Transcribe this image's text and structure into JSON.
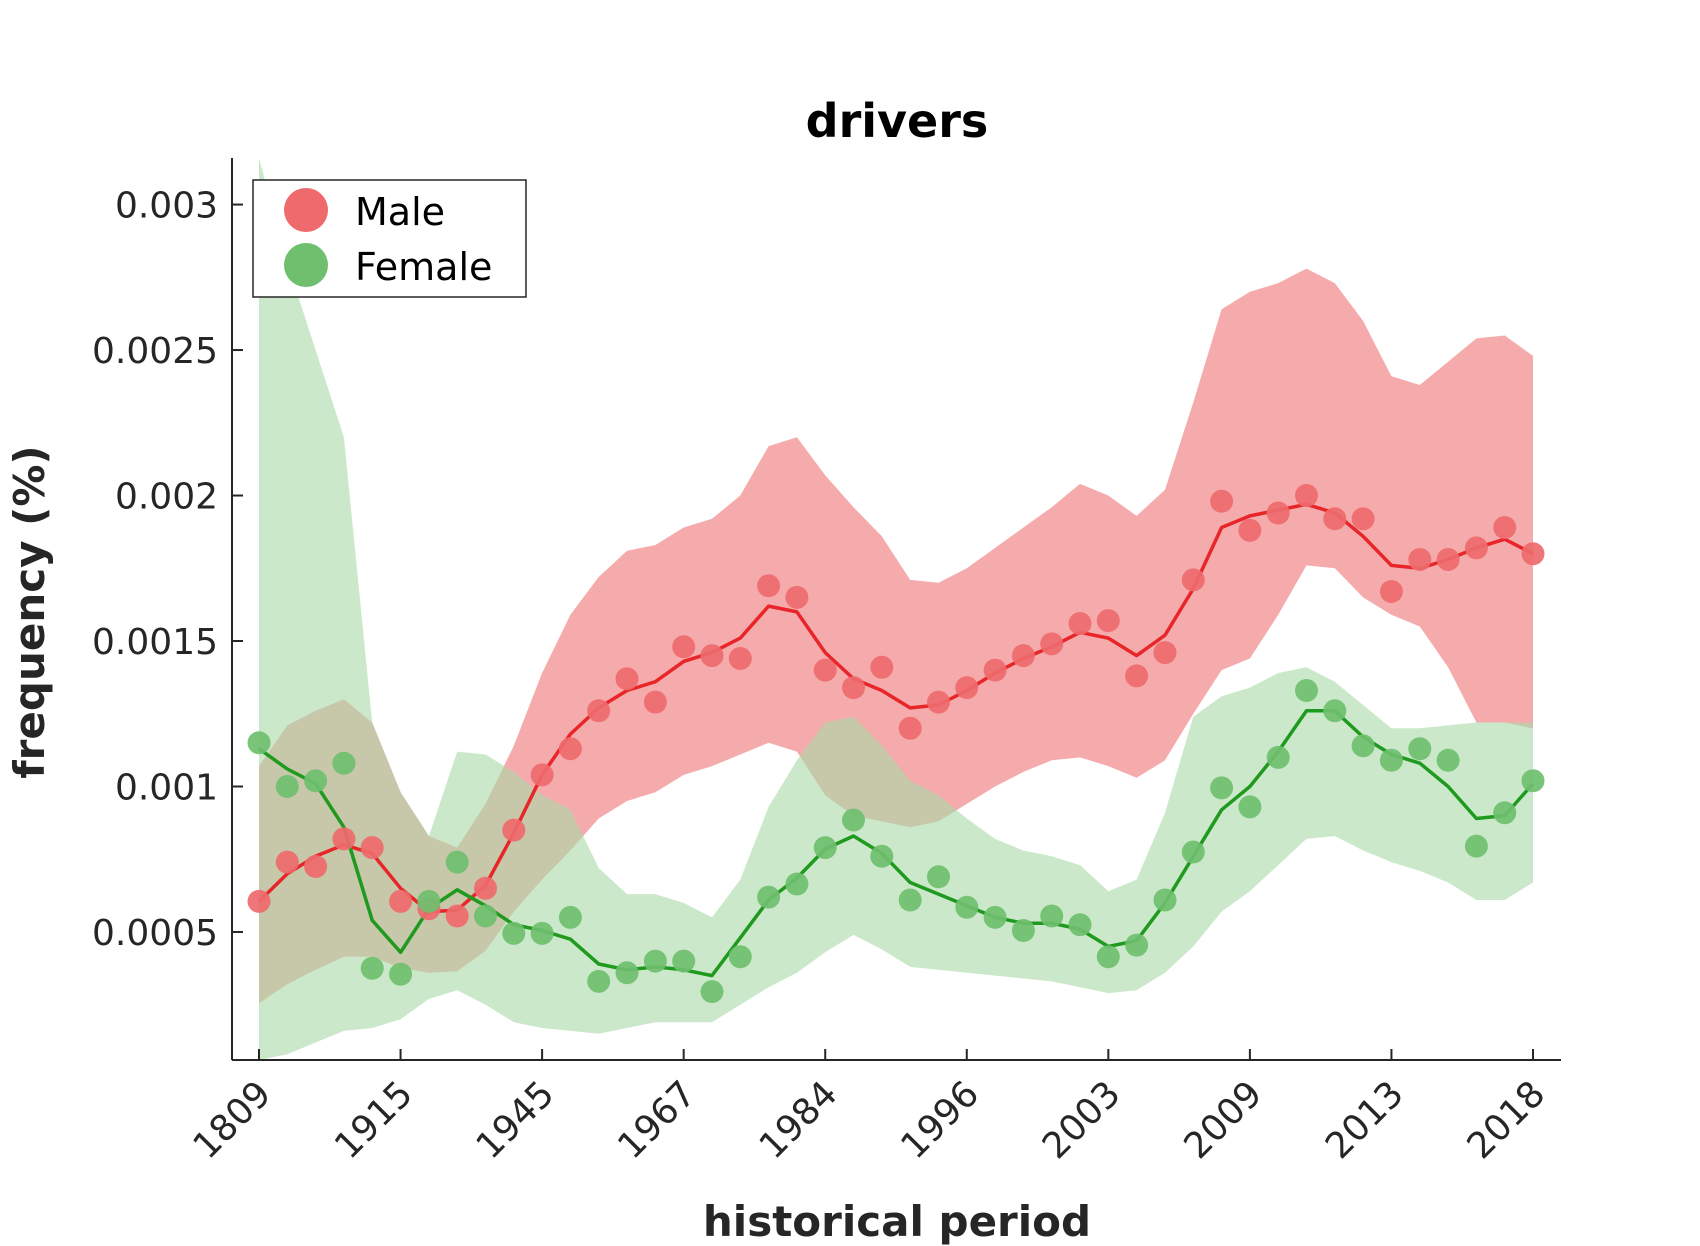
{
  "chart_data": {
    "type": "scatter",
    "title": "drivers",
    "xlabel": "historical period",
    "ylabel": "frequency (%)",
    "ylim": [
      6e-05,
      0.00316
    ],
    "yticks": [
      0.0005,
      0.001,
      0.0015,
      0.002,
      0.0025,
      0.003
    ],
    "ytick_labels": [
      "0.0005",
      "0.001",
      "0.0015",
      "0.002",
      "0.0025",
      "0.003"
    ],
    "xtick_labels": [
      "1809",
      "1915",
      "1945",
      "1967",
      "1984",
      "1996",
      "2003",
      "2009",
      "2013",
      "2018"
    ],
    "xtick_index": [
      0,
      5,
      10,
      15,
      20,
      25,
      30,
      35,
      40,
      45
    ],
    "grid": false,
    "legend_placement": "top-left",
    "series": [
      {
        "name": "Male",
        "color": "#e8262a",
        "marker_color": "#ee6a6c",
        "band_color": "#f4a2a3",
        "points": [
          0.000605,
          0.00074,
          0.000725,
          0.00082,
          0.00079,
          0.000605,
          0.00058,
          0.000555,
          0.00065,
          0.00085,
          0.00104,
          0.00113,
          0.00126,
          0.00137,
          0.00129,
          0.00148,
          0.00145,
          0.00144,
          0.00169,
          0.00165,
          0.0014,
          0.00134,
          0.00141,
          0.0012,
          0.00129,
          0.00134,
          0.0014,
          0.00145,
          0.00149,
          0.00156,
          0.00157,
          0.00138,
          0.00146,
          0.00171,
          0.00198,
          0.00188,
          0.00194,
          0.002,
          0.00192,
          0.00192,
          0.00167,
          0.00178,
          0.00178,
          0.00182,
          0.00189,
          0.0018
        ],
        "line": [
          0.000605,
          0.0007,
          0.00076,
          0.0008,
          0.00077,
          0.00065,
          0.00057,
          0.000575,
          0.00066,
          0.00084,
          0.00104,
          0.00118,
          0.00127,
          0.00133,
          0.00136,
          0.00143,
          0.00146,
          0.00151,
          0.00162,
          0.0016,
          0.00146,
          0.00137,
          0.00133,
          0.00127,
          0.00128,
          0.00133,
          0.00139,
          0.00144,
          0.00148,
          0.00153,
          0.00151,
          0.00145,
          0.00152,
          0.00168,
          0.00189,
          0.00193,
          0.00195,
          0.00197,
          0.00194,
          0.00186,
          0.00176,
          0.00175,
          0.00178,
          0.00182,
          0.00185,
          0.0018
        ],
        "band_upper": [
          0.00107,
          0.00121,
          0.00126,
          0.0013,
          0.00122,
          0.00098,
          0.00083,
          0.00079,
          0.00094,
          0.00114,
          0.00139,
          0.00159,
          0.00172,
          0.00181,
          0.00183,
          0.00189,
          0.00192,
          0.002,
          0.00217,
          0.0022,
          0.00207,
          0.00196,
          0.00186,
          0.00171,
          0.0017,
          0.00175,
          0.00182,
          0.00189,
          0.00196,
          0.00204,
          0.002,
          0.00193,
          0.00202,
          0.00232,
          0.00264,
          0.0027,
          0.00273,
          0.00278,
          0.00273,
          0.0026,
          0.00241,
          0.00238,
          0.00246,
          0.00254,
          0.00255,
          0.00248
        ],
        "band_lower": [
          0.000255,
          0.00032,
          0.00037,
          0.000415,
          0.000415,
          0.000375,
          0.00036,
          0.000365,
          0.000435,
          0.00057,
          0.00068,
          0.00078,
          0.00089,
          0.00095,
          0.00098,
          0.00104,
          0.00107,
          0.00111,
          0.00115,
          0.00112,
          0.00097,
          0.0009,
          0.00088,
          0.00086,
          0.00088,
          0.00094,
          0.001,
          0.00105,
          0.00109,
          0.0011,
          0.00107,
          0.00103,
          0.00109,
          0.00125,
          0.0014,
          0.00144,
          0.00159,
          0.00176,
          0.00175,
          0.00165,
          0.00159,
          0.00155,
          0.00141,
          0.00122,
          0.00122,
          0.0012
        ]
      },
      {
        "name": "Female",
        "color": "#1f9a1f",
        "marker_color": "#6fbf6f",
        "band_color": "#a9daa6",
        "points": [
          0.00115,
          0.001,
          0.00102,
          0.00108,
          0.000375,
          0.000355,
          0.000605,
          0.00074,
          0.000555,
          0.000495,
          0.000495,
          0.00055,
          0.00033,
          0.00036,
          0.0004,
          0.0004,
          0.000295,
          0.000415,
          0.00062,
          0.000665,
          0.00079,
          0.000885,
          0.00076,
          0.00061,
          0.00069,
          0.000585,
          0.00055,
          0.000505,
          0.000555,
          0.000525,
          0.000415,
          0.000455,
          0.00061,
          0.000775,
          0.000995,
          0.00093,
          0.0011,
          0.00133,
          0.00126,
          0.00114,
          0.00109,
          0.00113,
          0.00109,
          0.000795,
          0.00091,
          0.00102
        ],
        "line": [
          0.00113,
          0.00106,
          0.00101,
          0.00086,
          0.00054,
          0.00043,
          0.00058,
          0.000645,
          0.00059,
          0.000525,
          0.000505,
          0.000475,
          0.00039,
          0.00037,
          0.00038,
          0.00037,
          0.00035,
          0.00048,
          0.00061,
          0.000685,
          0.000785,
          0.00083,
          0.00077,
          0.00067,
          0.00063,
          0.00059,
          0.00055,
          0.00053,
          0.00053,
          0.00051,
          0.00045,
          0.00047,
          0.0006,
          0.00076,
          0.00092,
          0.001,
          0.00112,
          0.00126,
          0.00126,
          0.00117,
          0.00111,
          0.00108,
          0.001,
          0.00089,
          0.0009,
          0.00101
        ],
        "band_upper": [
          0.00316,
          0.0028,
          0.0025,
          0.0022,
          0.00122,
          0.00098,
          0.00083,
          0.00112,
          0.00111,
          0.00105,
          0.00097,
          0.00092,
          0.00072,
          0.00063,
          0.00063,
          0.0006,
          0.00055,
          0.00068,
          0.00093,
          0.00109,
          0.00122,
          0.00124,
          0.00114,
          0.00102,
          0.00097,
          0.00089,
          0.00082,
          0.00078,
          0.00076,
          0.00073,
          0.00064,
          0.00068,
          0.00091,
          0.00124,
          0.00131,
          0.00134,
          0.00139,
          0.00141,
          0.00136,
          0.00128,
          0.0012,
          0.0012,
          0.00121,
          0.00122,
          0.00122,
          0.00122
        ],
        "band_lower": [
          6e-05,
          8e-05,
          0.00012,
          0.00016,
          0.00017,
          0.0002,
          0.00027,
          0.0003,
          0.00025,
          0.00019,
          0.00017,
          0.00016,
          0.00015,
          0.00017,
          0.00019,
          0.00019,
          0.00019,
          0.00025,
          0.00031,
          0.00036,
          0.00043,
          0.00049,
          0.00044,
          0.00038,
          0.00037,
          0.00036,
          0.00035,
          0.00034,
          0.00033,
          0.00031,
          0.00029,
          0.0003,
          0.00036,
          0.00045,
          0.00057,
          0.00064,
          0.00073,
          0.00082,
          0.00083,
          0.00078,
          0.00074,
          0.00071,
          0.00067,
          0.00061,
          0.00061,
          0.00067
        ]
      }
    ]
  }
}
